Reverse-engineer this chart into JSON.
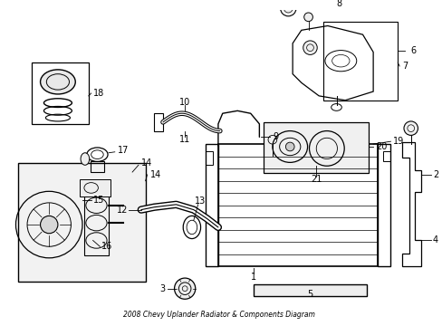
{
  "title": "2008 Chevy Uplander Radiator & Components Diagram",
  "bg_color": "#ffffff",
  "line_color": "#000000",
  "fig_width": 4.89,
  "fig_height": 3.6,
  "dpi": 100
}
